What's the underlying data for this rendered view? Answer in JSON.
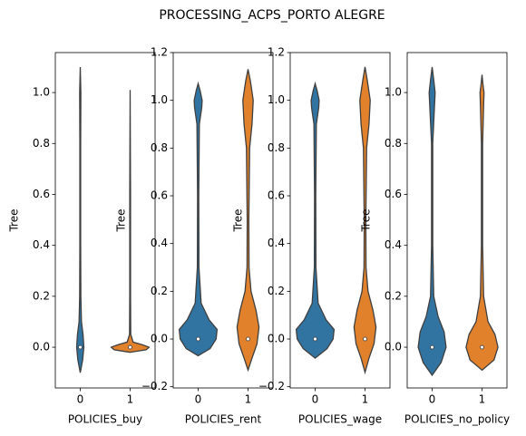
{
  "title": "PROCESSING_ACPS_PORTO ALEGRE",
  "chart_data": [
    {
      "type": "violin",
      "xlabel": "POLICIES_buy",
      "ylabel": "Tree",
      "categories": [
        "0",
        "1"
      ],
      "ylim": [
        -0.16,
        1.157
      ],
      "yticks": [
        {
          "value": 0,
          "label": "0.0"
        },
        {
          "value": 0.2,
          "label": "0.2"
        },
        {
          "value": 0.4,
          "label": "0.4"
        },
        {
          "value": 0.6,
          "label": "0.6"
        },
        {
          "value": 0.8,
          "label": "0.8"
        },
        {
          "value": 1,
          "label": "1.0"
        }
      ],
      "series": [
        {
          "color": "#3274a1",
          "median": 0,
          "y": [
            -0.1,
            -0.05,
            0,
            0.05,
            0.1,
            0.2,
            0.4,
            0.8,
            1.0,
            1.1
          ],
          "width": [
            0,
            0.12,
            0.18,
            0.14,
            0.06,
            0.03,
            0.02,
            0.02,
            0.03,
            0
          ]
        },
        {
          "color": "#e1812c",
          "median": 0,
          "y": [
            -0.02,
            -0.01,
            0,
            0.01,
            0.02,
            0.05,
            0.2,
            0.6,
            1.01
          ],
          "width": [
            0,
            0.8,
            0.95,
            0.6,
            0.15,
            0.03,
            0.02,
            0.02,
            0
          ]
        }
      ]
    },
    {
      "type": "violin",
      "xlabel": "POLICIES_rent",
      "ylabel": "Tree",
      "categories": [
        "0",
        "1"
      ],
      "ylim": [
        -0.205,
        1.2
      ],
      "yticks": [
        {
          "value": -0.2,
          "label": "−0.2"
        },
        {
          "value": 0,
          "label": "0.0"
        },
        {
          "value": 0.2,
          "label": "0.2"
        },
        {
          "value": 0.4,
          "label": "0.4"
        },
        {
          "value": 0.6,
          "label": "0.6"
        },
        {
          "value": 0.8,
          "label": "0.8"
        },
        {
          "value": 1,
          "label": "1.0"
        },
        {
          "value": 1.2,
          "label": "1.2"
        }
      ],
      "series": [
        {
          "color": "#3274a1",
          "median": 0,
          "y": [
            -0.07,
            -0.04,
            0,
            0.04,
            0.08,
            0.15,
            0.3,
            0.6,
            0.9,
            0.97,
            1.0,
            1.04,
            1.07
          ],
          "width": [
            0,
            0.6,
            0.9,
            0.95,
            0.55,
            0.15,
            0.04,
            0.03,
            0.06,
            0.18,
            0.2,
            0.1,
            0
          ]
        },
        {
          "color": "#e1812c",
          "median": 0,
          "y": [
            -0.13,
            -0.08,
            -0.02,
            0.05,
            0.12,
            0.2,
            0.3,
            0.5,
            0.8,
            0.9,
            1.0,
            1.08,
            1.13
          ],
          "width": [
            0,
            0.2,
            0.45,
            0.55,
            0.4,
            0.15,
            0.05,
            0.04,
            0.08,
            0.2,
            0.26,
            0.12,
            0
          ]
        }
      ]
    },
    {
      "type": "violin",
      "xlabel": "POLICIES_wage",
      "ylabel": "Tree",
      "categories": [
        "0",
        "1"
      ],
      "ylim": [
        -0.205,
        1.2
      ],
      "yticks": [
        {
          "value": -0.2,
          "label": "−0.2"
        },
        {
          "value": 0,
          "label": "0.0"
        },
        {
          "value": 0.2,
          "label": "0.2"
        },
        {
          "value": 0.4,
          "label": "0.4"
        },
        {
          "value": 0.6,
          "label": "0.6"
        },
        {
          "value": 0.8,
          "label": "0.8"
        },
        {
          "value": 1,
          "label": "1.0"
        },
        {
          "value": 1.2,
          "label": "1.2"
        }
      ],
      "series": [
        {
          "color": "#3274a1",
          "median": 0,
          "y": [
            -0.08,
            -0.04,
            0,
            0.04,
            0.08,
            0.15,
            0.3,
            0.6,
            0.9,
            0.97,
            1.0,
            1.04,
            1.07
          ],
          "width": [
            0,
            0.6,
            0.9,
            0.95,
            0.55,
            0.15,
            0.04,
            0.03,
            0.06,
            0.18,
            0.2,
            0.1,
            0
          ]
        },
        {
          "color": "#e1812c",
          "median": 0,
          "y": [
            -0.14,
            -0.08,
            -0.02,
            0.05,
            0.12,
            0.2,
            0.3,
            0.5,
            0.8,
            0.9,
            1.0,
            1.08,
            1.14
          ],
          "width": [
            0,
            0.2,
            0.45,
            0.55,
            0.4,
            0.15,
            0.05,
            0.04,
            0.08,
            0.2,
            0.26,
            0.12,
            0
          ]
        }
      ]
    },
    {
      "type": "violin",
      "xlabel": "POLICIES_no_policy",
      "ylabel": "Tree",
      "categories": [
        "0",
        "1"
      ],
      "ylim": [
        -0.16,
        1.157
      ],
      "yticks": [
        {
          "value": 0,
          "label": "0.0"
        },
        {
          "value": 0.2,
          "label": "0.2"
        },
        {
          "value": 0.4,
          "label": "0.4"
        },
        {
          "value": 0.6,
          "label": "0.6"
        },
        {
          "value": 0.8,
          "label": "0.8"
        },
        {
          "value": 1,
          "label": "1.0"
        }
      ],
      "series": [
        {
          "color": "#3274a1",
          "median": 0,
          "y": [
            -0.11,
            -0.06,
            0,
            0.06,
            0.12,
            0.2,
            0.4,
            0.8,
            0.95,
            1.0,
            1.05,
            1.1
          ],
          "width": [
            0,
            0.45,
            0.7,
            0.6,
            0.3,
            0.08,
            0.03,
            0.03,
            0.12,
            0.15,
            0.08,
            0
          ]
        },
        {
          "color": "#e1812c",
          "median": 0,
          "y": [
            -0.09,
            -0.05,
            0,
            0.05,
            0.1,
            0.2,
            0.4,
            0.8,
            0.95,
            1.0,
            1.03,
            1.07
          ],
          "width": [
            0,
            0.6,
            0.8,
            0.65,
            0.3,
            0.08,
            0.03,
            0.03,
            0.08,
            0.1,
            0.05,
            0
          ]
        }
      ]
    }
  ]
}
